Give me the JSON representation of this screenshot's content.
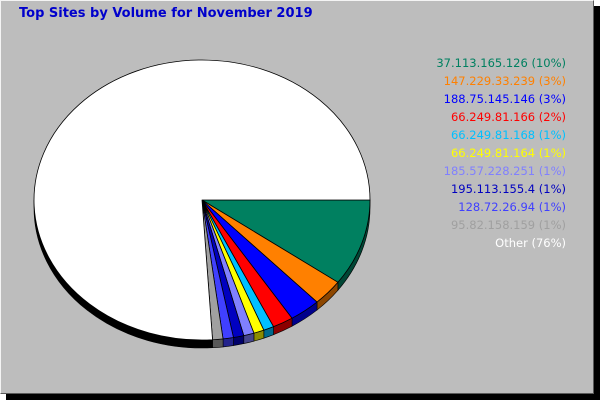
{
  "chart_data": {
    "type": "pie",
    "title": "Top Sites by Volume for November 2019",
    "slices": [
      {
        "label": "37.113.165.126 (10%)",
        "value": 10,
        "color": "#008060"
      },
      {
        "label": "147.229.33.239 (3%)",
        "value": 3,
        "color": "#ff8000"
      },
      {
        "label": "188.75.145.146 (3%)",
        "value": 3,
        "color": "#0000ff"
      },
      {
        "label": "66.249.81.166 (2%)",
        "value": 2,
        "color": "#ff0000"
      },
      {
        "label": "66.249.81.168 (1%)",
        "value": 1,
        "color": "#00c0ff"
      },
      {
        "label": "66.249.81.164 (1%)",
        "value": 1,
        "color": "#ffff00"
      },
      {
        "label": "185.57.228.251 (1%)",
        "value": 1,
        "color": "#8080ff"
      },
      {
        "label": "195.113.155.4 (1%)",
        "value": 1,
        "color": "#0000c0"
      },
      {
        "label": "128.72.26.94 (1%)",
        "value": 1,
        "color": "#4040ff"
      },
      {
        "label": "95.82.158.159 (1%)",
        "value": 1,
        "color": "#a0a0a0"
      },
      {
        "label": "Other (76%)",
        "value": 76,
        "color": "#ffffff"
      }
    ],
    "legend_position": "right"
  }
}
